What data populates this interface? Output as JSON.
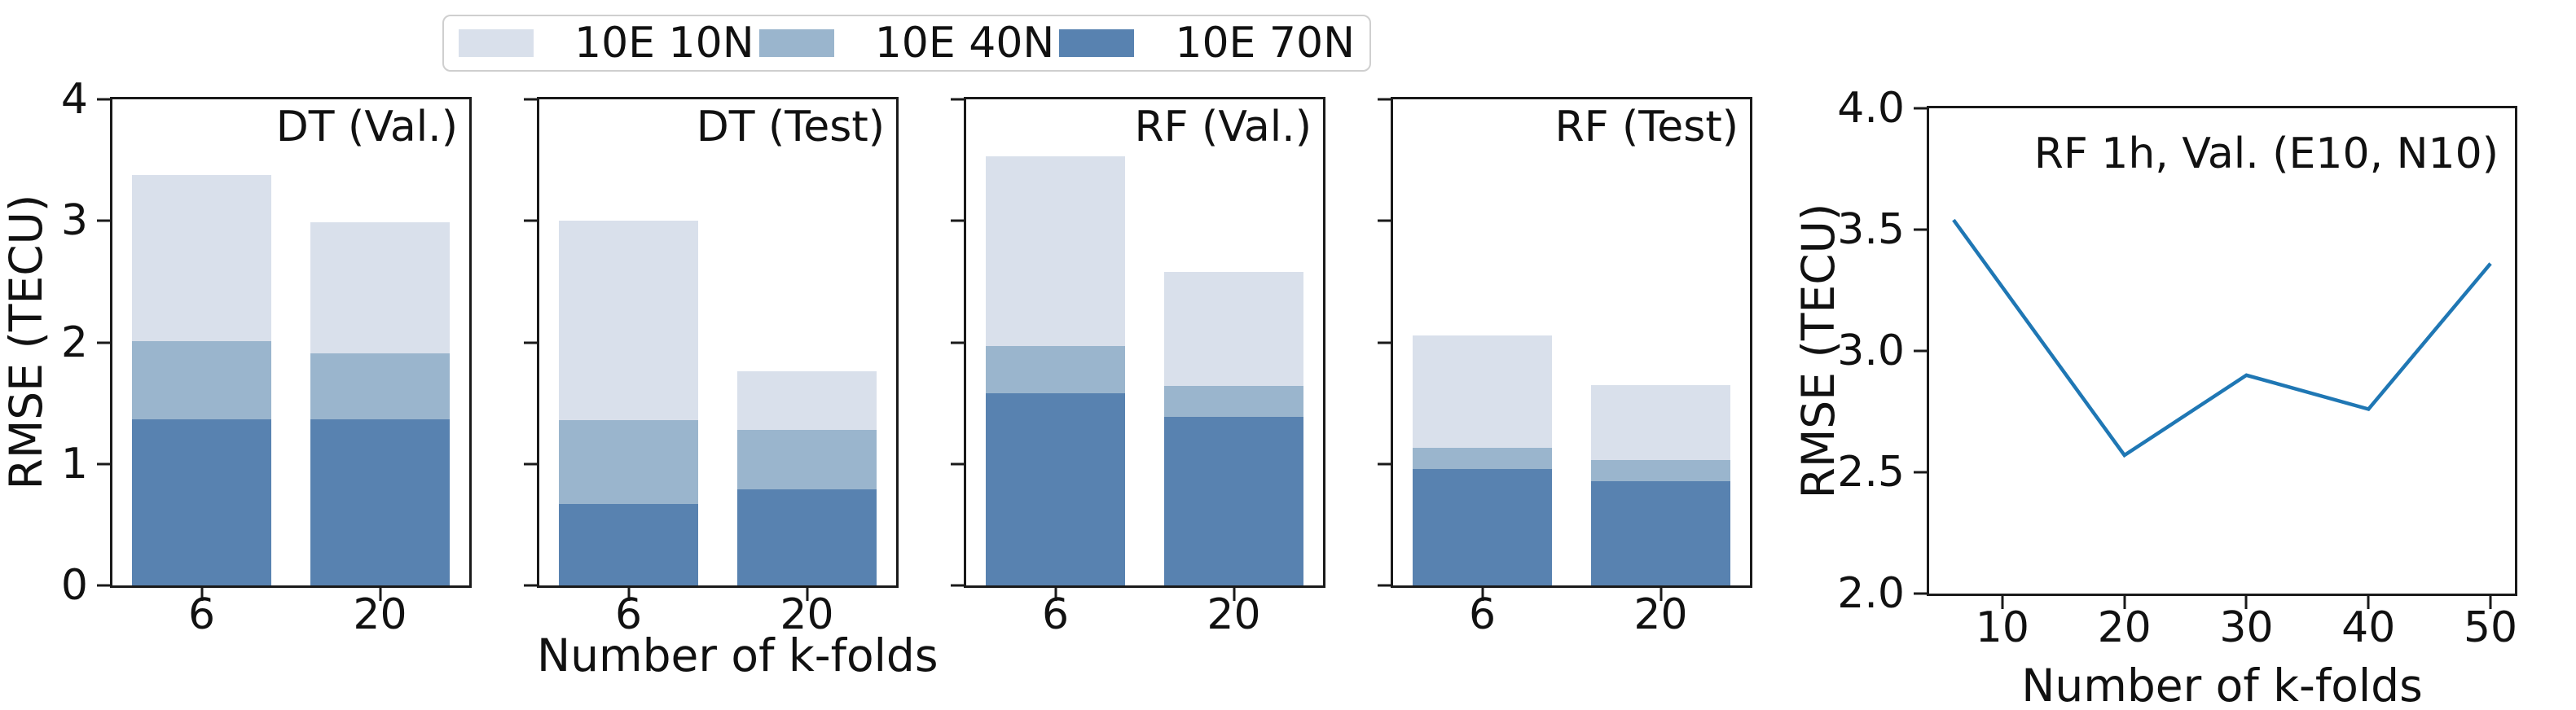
{
  "legend": {
    "items": [
      {
        "label": "10E 10N",
        "color": "#d9e0eb"
      },
      {
        "label": "10E 40N",
        "color": "#9ab5cd"
      },
      {
        "label": "10E 70N",
        "color": "#5882b0"
      }
    ]
  },
  "axes": {
    "bar_ylabel": "RMSE (TECU)",
    "bar_xlabel": "Number of k-folds",
    "line_ylabel": "RMSE (TECU)",
    "line_xlabel": "Number of k-folds"
  },
  "chart_data": [
    {
      "type": "bar",
      "mode": "overlay",
      "title": "DT (Val.)",
      "categories": [
        "6",
        "20"
      ],
      "series": [
        {
          "name": "10E 10N",
          "color": "#d9e0eb",
          "values": [
            3.38,
            2.99
          ]
        },
        {
          "name": "10E 40N",
          "color": "#9ab5cd",
          "values": [
            2.01,
            1.91
          ]
        },
        {
          "name": "10E 70N",
          "color": "#5882b0",
          "values": [
            1.37,
            1.37
          ]
        }
      ],
      "ylim": [
        0,
        4
      ],
      "yticks": [
        0,
        1,
        2,
        3,
        4
      ],
      "yticklabels": [
        "0",
        "1",
        "2",
        "3",
        "4"
      ],
      "ylabel": "RMSE (TECU)",
      "xlabel": ""
    },
    {
      "type": "bar",
      "mode": "overlay",
      "title": "DT (Test)",
      "categories": [
        "6",
        "20"
      ],
      "series": [
        {
          "name": "10E 10N",
          "color": "#d9e0eb",
          "values": [
            3.0,
            1.76
          ]
        },
        {
          "name": "10E 40N",
          "color": "#9ab5cd",
          "values": [
            1.36,
            1.28
          ]
        },
        {
          "name": "10E 70N",
          "color": "#5882b0",
          "values": [
            0.67,
            0.79
          ]
        }
      ],
      "ylim": [
        0,
        4
      ],
      "yticks": [
        0,
        1,
        2,
        3,
        4
      ],
      "yticklabels": [],
      "ylabel": "",
      "xlabel": "Number of k-folds"
    },
    {
      "type": "bar",
      "mode": "overlay",
      "title": "RF (Val.)",
      "categories": [
        "6",
        "20"
      ],
      "series": [
        {
          "name": "10E 10N",
          "color": "#d9e0eb",
          "values": [
            3.53,
            2.58
          ]
        },
        {
          "name": "10E 40N",
          "color": "#9ab5cd",
          "values": [
            1.97,
            1.64
          ]
        },
        {
          "name": "10E 70N",
          "color": "#5882b0",
          "values": [
            1.58,
            1.39
          ]
        }
      ],
      "ylim": [
        0,
        4
      ],
      "yticks": [
        0,
        1,
        2,
        3,
        4
      ],
      "yticklabels": [],
      "ylabel": "",
      "xlabel": ""
    },
    {
      "type": "bar",
      "mode": "overlay",
      "title": "RF (Test)",
      "categories": [
        "6",
        "20"
      ],
      "series": [
        {
          "name": "10E 10N",
          "color": "#d9e0eb",
          "values": [
            2.06,
            1.65
          ]
        },
        {
          "name": "10E 40N",
          "color": "#9ab5cd",
          "values": [
            1.13,
            1.03
          ]
        },
        {
          "name": "10E 70N",
          "color": "#5882b0",
          "values": [
            0.96,
            0.86
          ]
        }
      ],
      "ylim": [
        0,
        4
      ],
      "yticks": [
        0,
        1,
        2,
        3,
        4
      ],
      "yticklabels": [],
      "ylabel": "",
      "xlabel": ""
    },
    {
      "type": "line",
      "title": "RF 1h, Val. (E10, N10)",
      "x": [
        6,
        20,
        30,
        40,
        50
      ],
      "y": [
        3.54,
        2.57,
        2.9,
        2.76,
        3.36
      ],
      "xlim": [
        4,
        52
      ],
      "ylim": [
        2.0,
        4.0
      ],
      "xticks": [
        10,
        20,
        30,
        40,
        50
      ],
      "xticklabels": [
        "10",
        "20",
        "30",
        "40",
        "50"
      ],
      "yticks": [
        2.0,
        2.5,
        3.0,
        3.5,
        4.0
      ],
      "yticklabels": [
        "2.0",
        "2.5",
        "3.0",
        "3.5",
        "4.0"
      ],
      "color": "#1f77b4",
      "ylabel": "RMSE (TECU)",
      "xlabel": "Number of k-folds"
    }
  ]
}
